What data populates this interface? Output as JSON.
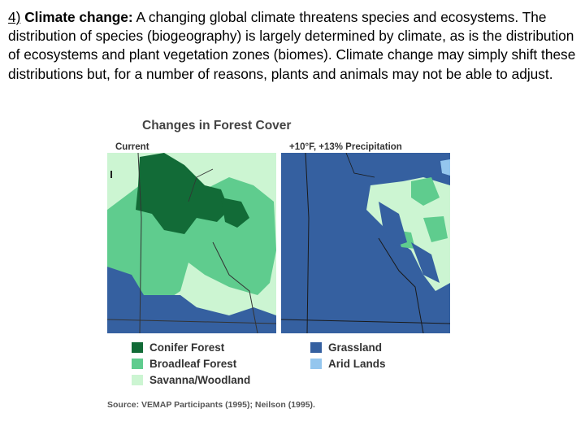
{
  "paragraph": {
    "number": "4)",
    "heading": "Climate change:",
    "body": "A changing global climate threatens species and ecosystems. The distribution of species (biogeography) is largely determined by climate, as is the distribution of ecosystems and plant vegetation zones (biomes).  Climate change may simply shift these distributions but, for a number of reasons, plants and animals may not be able to adjust."
  },
  "figure": {
    "title": "Changes in Forest Cover",
    "panel_current": "Current",
    "panel_future": "+10°F, +13% Precipitation",
    "legend": [
      {
        "label": "Conifer Forest",
        "color": "#126b37"
      },
      {
        "label": "Broadleaf Forest",
        "color": "#5fcc8e"
      },
      {
        "label": "Savanna/Woodland",
        "color": "#ccf5d2"
      },
      {
        "label": "Grassland",
        "color": "#3560a0"
      },
      {
        "label": "Arid Lands",
        "color": "#94c6ee"
      }
    ],
    "source": "Source: VEMAP Participants (1995); Neilson (1995)."
  }
}
